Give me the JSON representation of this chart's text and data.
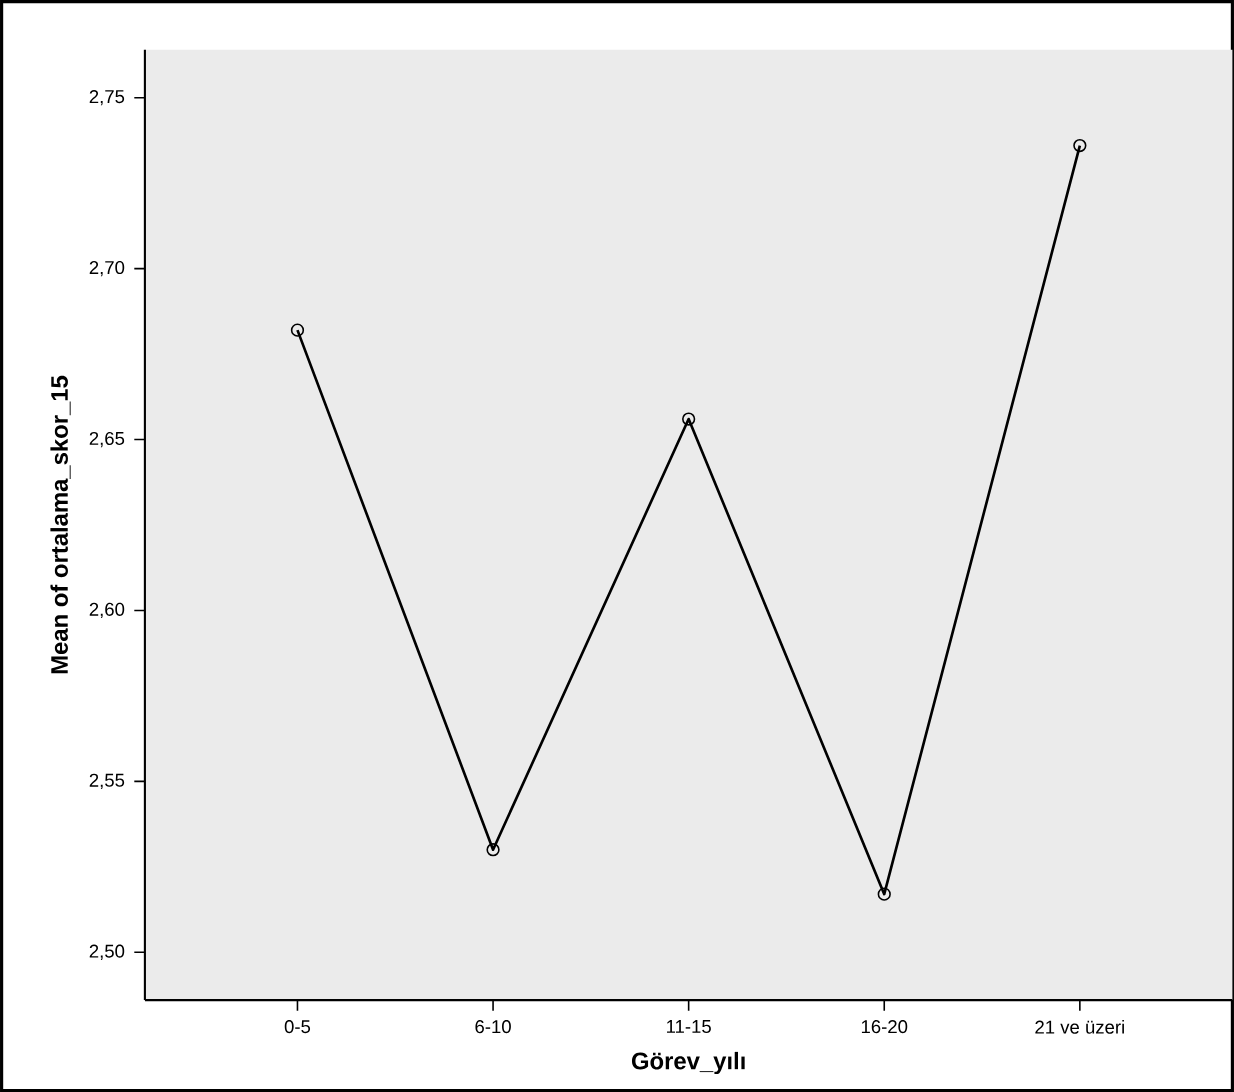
{
  "chart_data": {
    "type": "line",
    "xlabel": "Görev_yılı",
    "ylabel": "Mean of ortalama_skor_15",
    "categories": [
      "0-5",
      "6-10",
      "11-15",
      "16-20",
      "21 ve üzeri"
    ],
    "series": [
      {
        "color": "#000000",
        "values": [
          2.682,
          2.53,
          2.656,
          2.517,
          2.736
        ]
      }
    ],
    "ylim": [
      2.486,
      2.764
    ],
    "yticks": [
      {
        "value": 2.5,
        "label": "2,50"
      },
      {
        "value": 2.55,
        "label": "2,55"
      },
      {
        "value": 2.6,
        "label": "2,60"
      },
      {
        "value": 2.65,
        "label": "2,65"
      },
      {
        "value": 2.7,
        "label": "2,70"
      },
      {
        "value": 2.75,
        "label": "2,75"
      }
    ],
    "marker": "circle",
    "line_style": "solid",
    "grid": false
  }
}
